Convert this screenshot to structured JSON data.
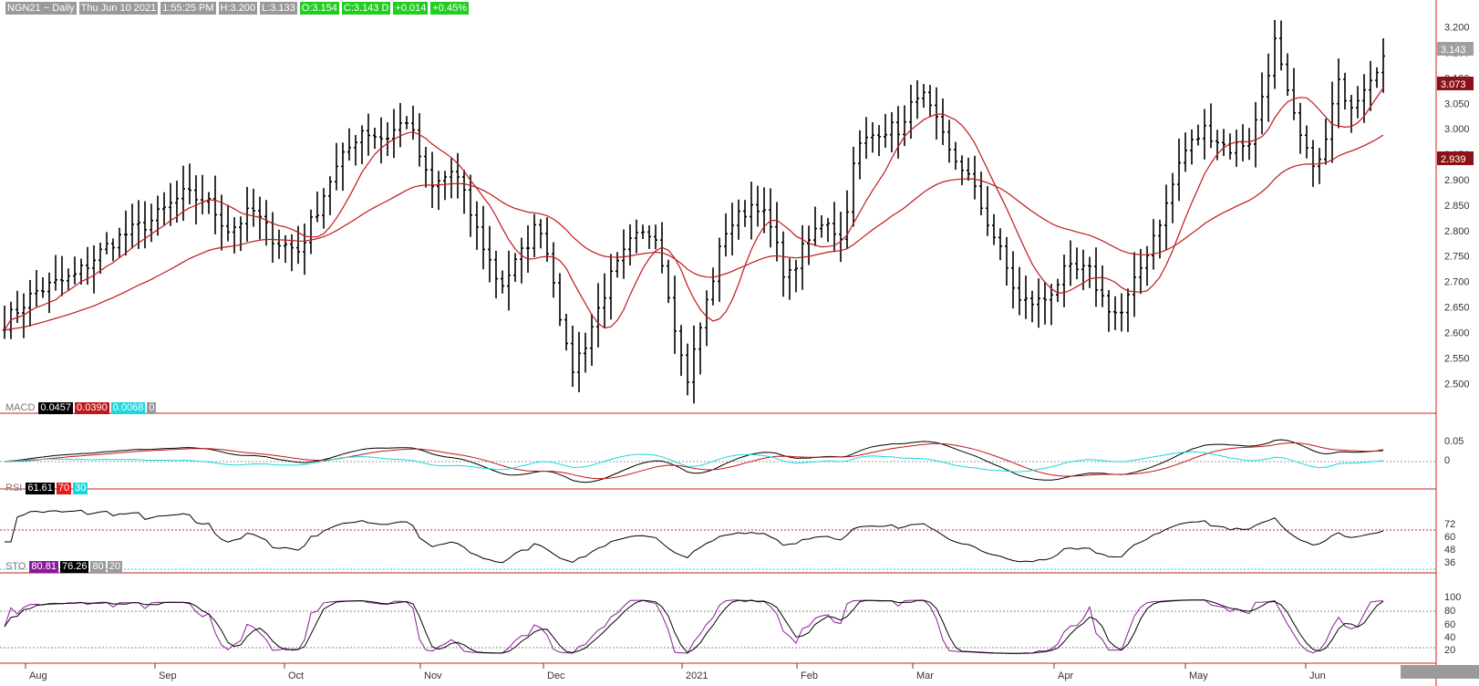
{
  "header": {
    "symbol": "NGN21 ~ Daily",
    "datetime": "Thu Jun 10 2021",
    "time": "1:55:25 PM",
    "high": "H:3.200",
    "low": "L:3.133",
    "open": "O:3.154",
    "close": "C:3.143 D",
    "change": "+0.014",
    "change_pct": "+0.45%"
  },
  "colors": {
    "bars": "#000000",
    "ma": "#c0181b",
    "grid_axis": "#cc2222",
    "header_grey": "#9a9a9a",
    "header_green": "#22cc22",
    "cyan": "#1ad7df",
    "sto_purple": "#8b1a9a"
  },
  "price_tags": {
    "last": "3.143",
    "ma_fast": "3.073",
    "ma_slow": "2.939"
  },
  "panels": {
    "macd": {
      "name": "MACD",
      "v1": "0.0457",
      "v2": "0.0390",
      "v3": "0.0068",
      "v4": "0",
      "ticks": [
        "0.05",
        "0"
      ]
    },
    "rsi": {
      "name": "RSI",
      "v1": "61.61",
      "v2": "70",
      "v3": "30",
      "ticks": [
        "72",
        "60",
        "48",
        "36"
      ]
    },
    "sto": {
      "name": "STO",
      "v1": "80.81",
      "v2": "76.26",
      "v3": "80",
      "v4": "20",
      "ticks": [
        "100",
        "80",
        "60",
        "40",
        "20"
      ]
    }
  },
  "chart_data": {
    "type": "ohlc-bar",
    "price_axis_ticks": [
      "3.200",
      "3.150",
      "3.100",
      "3.050",
      "3.000",
      "2.950",
      "2.900",
      "2.850",
      "2.800",
      "2.750",
      "2.700",
      "2.650",
      "2.600",
      "2.550",
      "2.500"
    ],
    "ylim": [
      2.47,
      3.21
    ],
    "months": [
      "Aug",
      "Sep",
      "Oct",
      "Nov",
      "Dec",
      "2021",
      "Feb",
      "Mar",
      "Apr",
      "May",
      "Jun"
    ],
    "close_anchors": [
      [
        0,
        2.62
      ],
      [
        8,
        2.68
      ],
      [
        18,
        2.71
      ],
      [
        28,
        2.78
      ],
      [
        38,
        2.82
      ],
      [
        46,
        2.87
      ],
      [
        52,
        2.86
      ],
      [
        58,
        2.8
      ],
      [
        64,
        2.84
      ],
      [
        70,
        2.78
      ],
      [
        76,
        2.76
      ],
      [
        84,
        2.9
      ],
      [
        92,
        3.0
      ],
      [
        98,
        2.98
      ],
      [
        104,
        3.02
      ],
      [
        110,
        2.88
      ],
      [
        116,
        2.92
      ],
      [
        122,
        2.8
      ],
      [
        128,
        2.69
      ],
      [
        134,
        2.76
      ],
      [
        138,
        2.82
      ],
      [
        142,
        2.7
      ],
      [
        146,
        2.52
      ],
      [
        150,
        2.58
      ],
      [
        156,
        2.7
      ],
      [
        162,
        2.78
      ],
      [
        168,
        2.8
      ],
      [
        172,
        2.66
      ],
      [
        176,
        2.5
      ],
      [
        180,
        2.62
      ],
      [
        186,
        2.8
      ],
      [
        194,
        2.86
      ],
      [
        198,
        2.8
      ],
      [
        202,
        2.7
      ],
      [
        206,
        2.76
      ],
      [
        212,
        2.83
      ],
      [
        216,
        2.78
      ],
      [
        220,
        2.96
      ],
      [
        226,
        3.0
      ],
      [
        232,
        3.0
      ],
      [
        236,
        3.08
      ],
      [
        240,
        3.02
      ],
      [
        244,
        2.95
      ],
      [
        248,
        2.92
      ],
      [
        252,
        2.85
      ],
      [
        256,
        2.78
      ],
      [
        262,
        2.66
      ],
      [
        268,
        2.66
      ],
      [
        274,
        2.72
      ],
      [
        280,
        2.72
      ],
      [
        284,
        2.66
      ],
      [
        288,
        2.63
      ],
      [
        292,
        2.7
      ],
      [
        296,
        2.78
      ],
      [
        300,
        2.85
      ],
      [
        304,
        2.95
      ],
      [
        310,
        3.0
      ],
      [
        316,
        2.96
      ],
      [
        322,
        2.98
      ],
      [
        328,
        3.17
      ],
      [
        332,
        3.04
      ],
      [
        336,
        2.95
      ],
      [
        340,
        2.93
      ],
      [
        344,
        3.09
      ],
      [
        348,
        3.05
      ],
      [
        352,
        3.1
      ],
      [
        356,
        3.143
      ]
    ],
    "ma_fast_end": 3.073,
    "ma_slow_end": 2.939,
    "macd": {
      "macd": 0.0457,
      "signal": 0.039,
      "histogram": 0.0068
    },
    "rsi": {
      "value": 61.61,
      "upper": 70,
      "lower": 30
    },
    "stochastic": {
      "k": 80.81,
      "d": 76.26,
      "upper": 80,
      "lower": 20
    }
  }
}
